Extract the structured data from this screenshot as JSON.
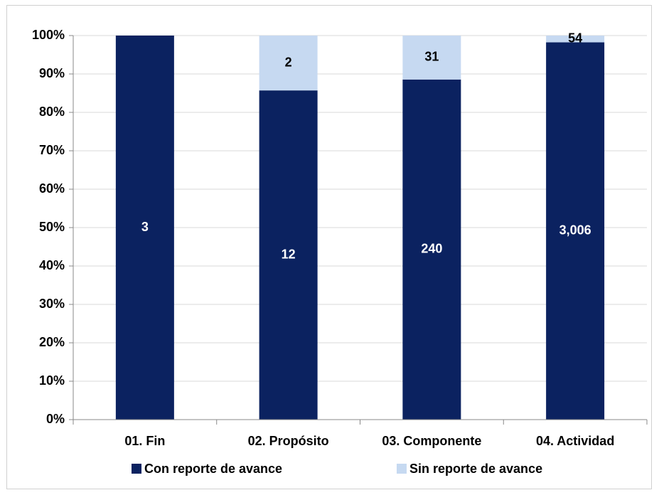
{
  "chart_data": {
    "type": "bar",
    "stack": "percent",
    "categories": [
      "01. Fin",
      "02. Propósito",
      "03. Componente",
      "04. Actividad"
    ],
    "series": [
      {
        "name": "Con reporte de avance",
        "color": "#0b2260",
        "values": [
          3,
          12,
          240,
          3006
        ],
        "value_labels": [
          "3",
          "12",
          "240",
          "3,006"
        ]
      },
      {
        "name": "Sin reporte de avance",
        "color": "#c6d9f1",
        "values": [
          0,
          2,
          31,
          54
        ]
      }
    ],
    "ylim": [
      0,
      100
    ],
    "yticks": [
      {
        "value": 0,
        "label": "0%"
      },
      {
        "value": 10,
        "label": "10%"
      },
      {
        "value": 20,
        "label": "20%"
      },
      {
        "value": 30,
        "label": "30%"
      },
      {
        "value": 40,
        "label": "40%"
      },
      {
        "value": 50,
        "label": "50%"
      },
      {
        "value": 60,
        "label": "60%"
      },
      {
        "value": 70,
        "label": "70%"
      },
      {
        "value": 80,
        "label": "80%"
      },
      {
        "value": 90,
        "label": "90%"
      },
      {
        "value": 100,
        "label": "100%"
      }
    ],
    "grid": true,
    "legend": "bottom"
  }
}
